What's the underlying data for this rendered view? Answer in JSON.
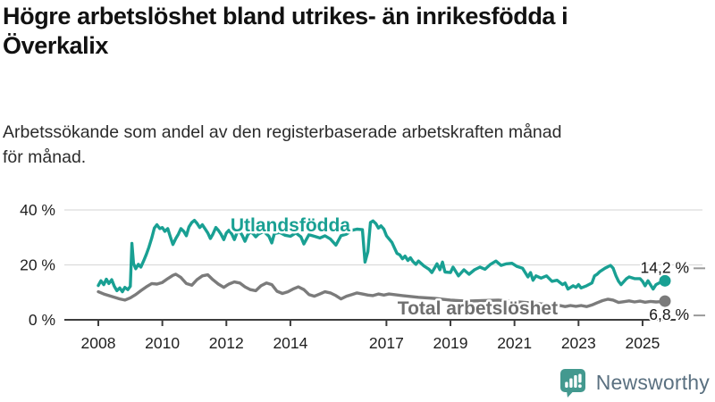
{
  "header": {
    "title_lines": [
      "Högre arbetslöshet bland utrikes- än inrikesfödda i",
      "Överkalix"
    ],
    "subtitle_lines": [
      "Arbetssökande som andel av den registerbaserade arbetskraften månad",
      "för månad."
    ]
  },
  "branding": {
    "logo_text": "Newsworthy",
    "icon_name": "newsworthy-chart-bubble-icon",
    "icon_color": "#43998f",
    "text_color": "#5a7080"
  },
  "chart_data": {
    "type": "line",
    "title": "Högre arbetslöshet bland utrikes- än inrikesfödda i Överkalix",
    "subtitle": "Arbetssökande som andel av den registerbaserade arbetskraften månad för månad.",
    "unit": "%",
    "grid": "horizontal-only",
    "xlim": [
      2008,
      2025.7
    ],
    "ylim": [
      0,
      42
    ],
    "y_ticks": [
      {
        "v": 40,
        "label": "40 %"
      },
      {
        "v": 20,
        "label": "20 %"
      },
      {
        "v": 0,
        "label": "0 %"
      }
    ],
    "x_ticks": [
      {
        "v": 2008,
        "label": "2008"
      },
      {
        "v": 2010,
        "label": "2010"
      },
      {
        "v": 2012,
        "label": "2012"
      },
      {
        "v": 2014,
        "label": "2014"
      },
      {
        "v": 2017,
        "label": "2017"
      },
      {
        "v": 2019,
        "label": "2019"
      },
      {
        "v": 2021,
        "label": "2021"
      },
      {
        "v": 2023,
        "label": "2023"
      },
      {
        "v": 2025,
        "label": "2025"
      }
    ],
    "colors": {
      "grid": "#dcdcdc",
      "axis": "#3d3d3d",
      "tick_text": "#1f1f1f",
      "end_label_text": "#161616",
      "leader_dash": "#9a9a9a"
    },
    "series": [
      {
        "name": "Utlandsfödda",
        "color": "#19a093",
        "label_x": 2014.0,
        "label_y": 32.2,
        "end_label": "14,2 %",
        "end_value": 14.2,
        "points": [
          [
            2008.0,
            12.5
          ],
          [
            2008.08,
            14.2
          ],
          [
            2008.17,
            12.8
          ],
          [
            2008.25,
            14.8
          ],
          [
            2008.33,
            13.2
          ],
          [
            2008.42,
            14.6
          ],
          [
            2008.5,
            12.2
          ],
          [
            2008.58,
            10.6
          ],
          [
            2008.67,
            11.6
          ],
          [
            2008.75,
            10.2
          ],
          [
            2008.83,
            11.8
          ],
          [
            2008.92,
            11.0
          ],
          [
            2009.0,
            12.2
          ],
          [
            2009.05,
            27.8
          ],
          [
            2009.1,
            20.5
          ],
          [
            2009.17,
            18.6
          ],
          [
            2009.25,
            20.2
          ],
          [
            2009.33,
            19.2
          ],
          [
            2009.42,
            21.6
          ],
          [
            2009.5,
            23.8
          ],
          [
            2009.58,
            26.4
          ],
          [
            2009.67,
            29.8
          ],
          [
            2009.75,
            33.4
          ],
          [
            2009.83,
            34.6
          ],
          [
            2009.92,
            33.2
          ],
          [
            2010.0,
            33.6
          ],
          [
            2010.08,
            32.2
          ],
          [
            2010.17,
            33.2
          ],
          [
            2010.25,
            30.2
          ],
          [
            2010.33,
            27.4
          ],
          [
            2010.42,
            29.6
          ],
          [
            2010.5,
            31.2
          ],
          [
            2010.58,
            33.2
          ],
          [
            2010.67,
            32.2
          ],
          [
            2010.75,
            30.6
          ],
          [
            2010.83,
            33.8
          ],
          [
            2010.92,
            35.4
          ],
          [
            2011.0,
            36.2
          ],
          [
            2011.08,
            35.2
          ],
          [
            2011.17,
            33.6
          ],
          [
            2011.25,
            34.6
          ],
          [
            2011.33,
            33.2
          ],
          [
            2011.42,
            31.6
          ],
          [
            2011.5,
            29.6
          ],
          [
            2011.58,
            31.2
          ],
          [
            2011.67,
            33.6
          ],
          [
            2011.75,
            32.6
          ],
          [
            2011.83,
            31.2
          ],
          [
            2011.92,
            29.2
          ],
          [
            2012.0,
            31.6
          ],
          [
            2012.08,
            32.6
          ],
          [
            2012.17,
            31.2
          ],
          [
            2012.25,
            29.2
          ],
          [
            2012.33,
            31.6
          ],
          [
            2012.42,
            32.2
          ],
          [
            2012.5,
            30.6
          ],
          [
            2012.58,
            28.6
          ],
          [
            2012.67,
            31.0
          ],
          [
            2012.75,
            32.0
          ],
          [
            2012.83,
            31.4
          ],
          [
            2012.92,
            30.2
          ],
          [
            2013.0,
            31.2
          ],
          [
            2013.17,
            32.2
          ],
          [
            2013.33,
            30.4
          ],
          [
            2013.42,
            28.0
          ],
          [
            2013.5,
            31.4
          ],
          [
            2013.67,
            31.8
          ],
          [
            2013.83,
            30.8
          ],
          [
            2014.0,
            30.4
          ],
          [
            2014.17,
            31.6
          ],
          [
            2014.33,
            30.2
          ],
          [
            2014.42,
            27.6
          ],
          [
            2014.58,
            31.0
          ],
          [
            2014.75,
            30.4
          ],
          [
            2014.92,
            29.8
          ],
          [
            2015.08,
            30.6
          ],
          [
            2015.25,
            29.4
          ],
          [
            2015.42,
            27.2
          ],
          [
            2015.58,
            30.6
          ],
          [
            2015.75,
            31.2
          ],
          [
            2015.92,
            32.6
          ],
          [
            2016.08,
            33.0
          ],
          [
            2016.25,
            32.8
          ],
          [
            2016.33,
            21.0
          ],
          [
            2016.42,
            24.8
          ],
          [
            2016.5,
            35.4
          ],
          [
            2016.58,
            36.0
          ],
          [
            2016.67,
            35.0
          ],
          [
            2016.75,
            33.4
          ],
          [
            2016.83,
            34.2
          ],
          [
            2016.92,
            33.0
          ],
          [
            2017.0,
            30.6
          ],
          [
            2017.17,
            28.2
          ],
          [
            2017.25,
            26.2
          ],
          [
            2017.33,
            24.2
          ],
          [
            2017.42,
            23.6
          ],
          [
            2017.5,
            22.2
          ],
          [
            2017.58,
            23.2
          ],
          [
            2017.67,
            21.6
          ],
          [
            2017.75,
            22.6
          ],
          [
            2017.83,
            21.2
          ],
          [
            2017.92,
            20.2
          ],
          [
            2018.0,
            21.4
          ],
          [
            2018.17,
            19.6
          ],
          [
            2018.33,
            18.4
          ],
          [
            2018.42,
            17.2
          ],
          [
            2018.5,
            18.8
          ],
          [
            2018.58,
            20.4
          ],
          [
            2018.67,
            18.2
          ],
          [
            2018.75,
            21.0
          ],
          [
            2018.83,
            17.4
          ],
          [
            2019.0,
            17.2
          ],
          [
            2019.08,
            19.2
          ],
          [
            2019.25,
            16.0
          ],
          [
            2019.42,
            18.2
          ],
          [
            2019.58,
            16.6
          ],
          [
            2019.75,
            18.2
          ],
          [
            2019.92,
            19.2
          ],
          [
            2020.08,
            18.4
          ],
          [
            2020.25,
            20.2
          ],
          [
            2020.42,
            21.4
          ],
          [
            2020.58,
            19.8
          ],
          [
            2020.75,
            20.4
          ],
          [
            2020.92,
            20.6
          ],
          [
            2021.08,
            19.4
          ],
          [
            2021.25,
            18.8
          ],
          [
            2021.42,
            15.6
          ],
          [
            2021.5,
            17.2
          ],
          [
            2021.58,
            14.4
          ],
          [
            2021.67,
            16.0
          ],
          [
            2021.83,
            15.2
          ],
          [
            2022.0,
            16.0
          ],
          [
            2022.17,
            14.0
          ],
          [
            2022.33,
            14.4
          ],
          [
            2022.5,
            12.8
          ],
          [
            2022.58,
            13.4
          ],
          [
            2022.67,
            11.2
          ],
          [
            2022.83,
            12.4
          ],
          [
            2022.92,
            11.8
          ],
          [
            2023.0,
            12.8
          ],
          [
            2023.08,
            11.6
          ],
          [
            2023.25,
            12.4
          ],
          [
            2023.42,
            13.4
          ],
          [
            2023.5,
            16.0
          ],
          [
            2023.58,
            16.6
          ],
          [
            2023.67,
            17.6
          ],
          [
            2023.83,
            18.8
          ],
          [
            2024.0,
            19.8
          ],
          [
            2024.08,
            18.8
          ],
          [
            2024.17,
            16.0
          ],
          [
            2024.25,
            14.0
          ],
          [
            2024.33,
            12.8
          ],
          [
            2024.5,
            15.0
          ],
          [
            2024.58,
            15.6
          ],
          [
            2024.75,
            15.0
          ],
          [
            2024.92,
            15.0
          ],
          [
            2025.0,
            14.0
          ],
          [
            2025.08,
            12.4
          ],
          [
            2025.17,
            14.2
          ],
          [
            2025.33,
            11.2
          ],
          [
            2025.42,
            12.8
          ],
          [
            2025.58,
            13.8
          ],
          [
            2025.7,
            14.2
          ]
        ]
      },
      {
        "name": "Total arbetslöshet",
        "color": "#7b7b7b",
        "label_color": "#6f6f6f",
        "label_x": 2019.85,
        "label_y": 2.0,
        "end_label": "6,8 %",
        "end_value": 6.8,
        "points": [
          [
            2008.0,
            10.2
          ],
          [
            2008.17,
            9.4
          ],
          [
            2008.33,
            8.8
          ],
          [
            2008.5,
            8.2
          ],
          [
            2008.67,
            7.6
          ],
          [
            2008.83,
            7.2
          ],
          [
            2009.0,
            8.0
          ],
          [
            2009.17,
            9.2
          ],
          [
            2009.33,
            10.6
          ],
          [
            2009.5,
            12.0
          ],
          [
            2009.67,
            13.2
          ],
          [
            2009.83,
            13.0
          ],
          [
            2010.0,
            13.6
          ],
          [
            2010.17,
            15.0
          ],
          [
            2010.33,
            16.2
          ],
          [
            2010.42,
            16.6
          ],
          [
            2010.58,
            15.4
          ],
          [
            2010.75,
            13.2
          ],
          [
            2010.92,
            12.6
          ],
          [
            2011.08,
            14.6
          ],
          [
            2011.25,
            16.0
          ],
          [
            2011.42,
            16.4
          ],
          [
            2011.58,
            14.6
          ],
          [
            2011.75,
            13.0
          ],
          [
            2011.92,
            11.8
          ],
          [
            2012.08,
            13.0
          ],
          [
            2012.25,
            13.8
          ],
          [
            2012.42,
            13.4
          ],
          [
            2012.58,
            12.0
          ],
          [
            2012.75,
            11.0
          ],
          [
            2012.92,
            10.6
          ],
          [
            2013.08,
            12.4
          ],
          [
            2013.25,
            13.4
          ],
          [
            2013.42,
            12.8
          ],
          [
            2013.58,
            10.4
          ],
          [
            2013.75,
            9.6
          ],
          [
            2013.92,
            10.2
          ],
          [
            2014.08,
            11.2
          ],
          [
            2014.25,
            12.0
          ],
          [
            2014.42,
            11.0
          ],
          [
            2014.58,
            9.2
          ],
          [
            2014.75,
            8.6
          ],
          [
            2014.92,
            9.4
          ],
          [
            2015.08,
            10.2
          ],
          [
            2015.25,
            9.8
          ],
          [
            2015.42,
            8.8
          ],
          [
            2015.58,
            7.6
          ],
          [
            2015.75,
            8.6
          ],
          [
            2015.92,
            9.2
          ],
          [
            2016.08,
            9.8
          ],
          [
            2016.25,
            9.4
          ],
          [
            2016.42,
            9.0
          ],
          [
            2016.58,
            8.8
          ],
          [
            2016.75,
            9.4
          ],
          [
            2016.92,
            9.0
          ],
          [
            2017.08,
            9.4
          ],
          [
            2017.5,
            8.8
          ],
          [
            2018.0,
            8.2
          ],
          [
            2018.5,
            7.8
          ],
          [
            2019.0,
            7.2
          ],
          [
            2019.5,
            6.8
          ],
          [
            2020.0,
            7.0
          ],
          [
            2020.5,
            7.2
          ],
          [
            2021.0,
            6.6
          ],
          [
            2021.5,
            6.2
          ],
          [
            2022.0,
            5.6
          ],
          [
            2022.42,
            5.2
          ],
          [
            2022.58,
            4.8
          ],
          [
            2022.75,
            5.2
          ],
          [
            2022.92,
            4.9
          ],
          [
            2023.08,
            5.2
          ],
          [
            2023.25,
            4.8
          ],
          [
            2023.42,
            5.4
          ],
          [
            2023.58,
            6.2
          ],
          [
            2023.75,
            7.0
          ],
          [
            2023.92,
            7.5
          ],
          [
            2024.08,
            7.2
          ],
          [
            2024.25,
            6.3
          ],
          [
            2024.42,
            6.6
          ],
          [
            2024.58,
            6.9
          ],
          [
            2024.75,
            6.5
          ],
          [
            2024.92,
            6.8
          ],
          [
            2025.08,
            6.4
          ],
          [
            2025.25,
            6.7
          ],
          [
            2025.42,
            6.5
          ],
          [
            2025.58,
            6.6
          ],
          [
            2025.7,
            6.8
          ]
        ]
      }
    ]
  }
}
